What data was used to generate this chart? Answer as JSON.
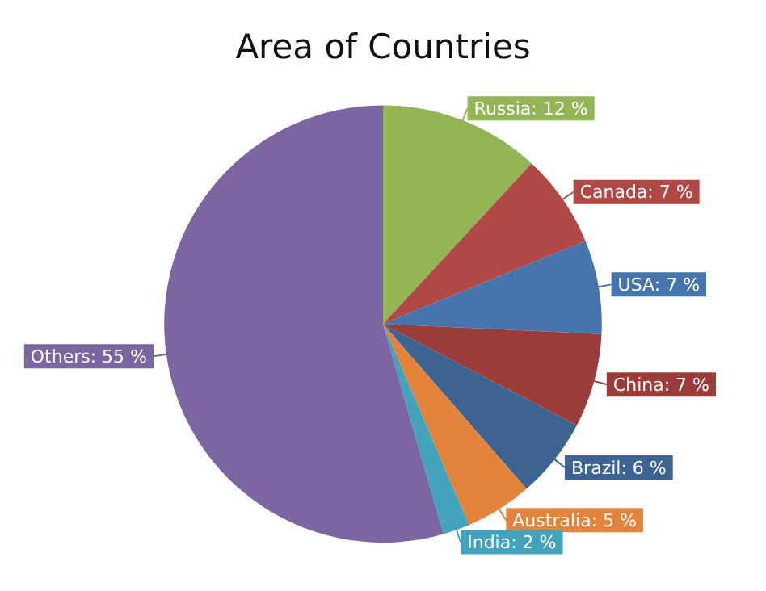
{
  "chart_data": {
    "type": "pie",
    "title": "Area of Countries",
    "categories": [
      "Russia",
      "Canada",
      "USA",
      "China",
      "Brazil",
      "Australia",
      "India",
      "Others"
    ],
    "values": [
      12,
      7,
      7,
      7,
      6,
      5,
      2,
      55
    ],
    "colors": [
      "#93b555",
      "#b04846",
      "#4675ad",
      "#9c3c3a",
      "#3d6392",
      "#e4843c",
      "#43a3bd",
      "#7c66a2"
    ],
    "value_labels": [
      "12 %",
      "7 %",
      "7 %",
      "7 %",
      "6 %",
      "5 %",
      "2 %",
      "55 %"
    ],
    "legend": false
  }
}
